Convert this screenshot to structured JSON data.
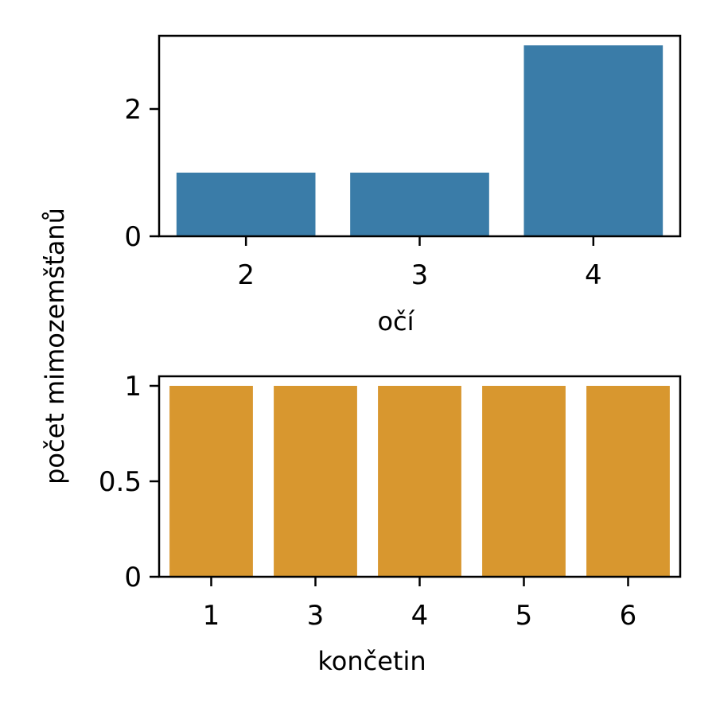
{
  "chart_data": [
    {
      "type": "bar",
      "categories": [
        "2",
        "3",
        "4"
      ],
      "values": [
        1,
        1,
        3
      ],
      "xlabel": "očí",
      "ylabel": "",
      "ylim": [
        0,
        3.15
      ],
      "yticks": [
        0,
        2
      ],
      "ytick_labels": [
        "0",
        "2"
      ],
      "color": "#3a7ca8",
      "grid": false
    },
    {
      "type": "bar",
      "categories": [
        "1",
        "3",
        "4",
        "5",
        "6"
      ],
      "values": [
        1,
        1,
        1,
        1,
        1
      ],
      "xlabel": "končetin",
      "ylabel": "",
      "ylim": [
        0,
        1.05
      ],
      "yticks": [
        0,
        0.5,
        1
      ],
      "ytick_labels": [
        "0",
        "0.5",
        "1"
      ],
      "color": "#d8972f",
      "grid": false
    }
  ],
  "shared_ylabel": "počet mimozemšťanů"
}
